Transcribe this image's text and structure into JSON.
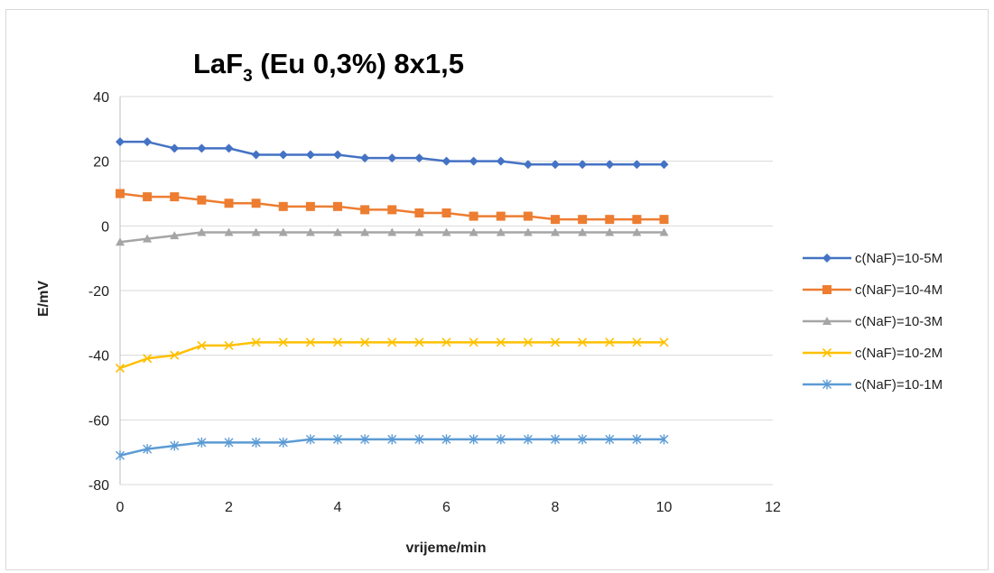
{
  "chart_data": {
    "type": "line",
    "title": {
      "main": "LaF",
      "sub": "3",
      "rest": " (Eu 0,3%) 8x1,5"
    },
    "xlabel": "vrijeme/min",
    "ylabel": "E/mV",
    "xlim": [
      0,
      12
    ],
    "ylim": [
      -80,
      40
    ],
    "xticks": [
      0,
      2,
      4,
      6,
      8,
      10,
      12
    ],
    "yticks": [
      -80,
      -60,
      -40,
      -20,
      0,
      20,
      40
    ],
    "grid": "horizontal",
    "legend_position": "right",
    "x": [
      0,
      0.5,
      1,
      1.5,
      2,
      2.5,
      3,
      3.5,
      4,
      4.5,
      5,
      5.5,
      6,
      6.5,
      7,
      7.5,
      8,
      8.5,
      9,
      9.5,
      10
    ],
    "series": [
      {
        "name": "c(NaF)=10-5M",
        "color": "#4472c4",
        "marker": "diamond",
        "values": [
          26,
          26,
          24,
          24,
          24,
          22,
          22,
          22,
          22,
          21,
          21,
          21,
          20,
          20,
          20,
          19,
          19,
          19,
          19,
          19,
          19
        ]
      },
      {
        "name": "c(NaF)=10-4M",
        "color": "#ed7d31",
        "marker": "square",
        "values": [
          10,
          9,
          9,
          8,
          7,
          7,
          6,
          6,
          6,
          5,
          5,
          4,
          4,
          3,
          3,
          3,
          2,
          2,
          2,
          2,
          2
        ]
      },
      {
        "name": "c(NaF)=10-3M",
        "color": "#a5a5a5",
        "marker": "triangle",
        "values": [
          -5,
          -4,
          -3,
          -2,
          -2,
          -2,
          -2,
          -2,
          -2,
          -2,
          -2,
          -2,
          -2,
          -2,
          -2,
          -2,
          -2,
          -2,
          -2,
          -2,
          -2
        ]
      },
      {
        "name": "c(NaF)=10-2M",
        "color": "#ffc000",
        "marker": "x",
        "values": [
          -44,
          -41,
          -40,
          -37,
          -37,
          -36,
          -36,
          -36,
          -36,
          -36,
          -36,
          -36,
          -36,
          -36,
          -36,
          -36,
          -36,
          -36,
          -36,
          -36,
          -36
        ]
      },
      {
        "name": "c(NaF)=10-1M",
        "color": "#5b9bd5",
        "marker": "star",
        "values": [
          -71,
          -69,
          -68,
          -67,
          -67,
          -67,
          -67,
          -66,
          -66,
          -66,
          -66,
          -66,
          -66,
          -66,
          -66,
          -66,
          -66,
          -66,
          -66,
          -66,
          -66
        ]
      }
    ]
  }
}
